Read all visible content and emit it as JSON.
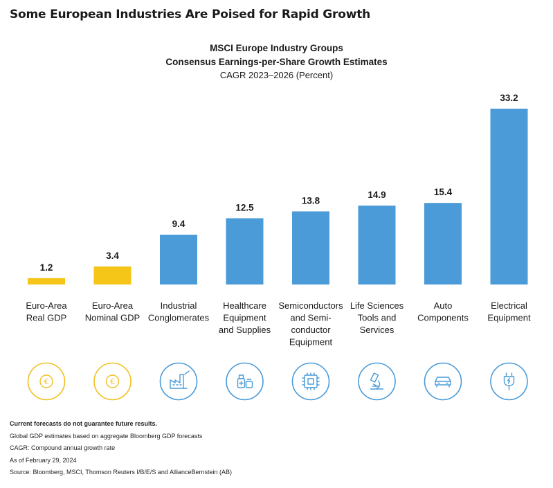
{
  "headline": "Some European Industries Are Poised for Rapid Growth",
  "chart_data": {
    "type": "bar",
    "title": "MSCI Europe Industry Groups",
    "subtitle": "Consensus Earnings-per-Share Growth Estimates",
    "subtitle2": "CAGR 2023–2026 (Percent)",
    "categories": [
      [
        "Euro-Area",
        "Real GDP"
      ],
      [
        "Euro-Area",
        "Nominal GDP"
      ],
      [
        "Industrial",
        "Conglomerates"
      ],
      [
        "Healthcare",
        "Equipment",
        "and Supplies"
      ],
      [
        "Semiconductors",
        "and Semi-",
        "conductor",
        "Equipment"
      ],
      [
        "Life Sciences",
        "Tools and",
        "Services"
      ],
      [
        "Auto",
        "Components"
      ],
      [
        "Electrical",
        "Equipment"
      ]
    ],
    "values": [
      1.2,
      3.4,
      9.4,
      12.5,
      13.8,
      14.9,
      15.4,
      33.2
    ],
    "value_labels": [
      "1.2",
      "3.4",
      "9.4",
      "12.5",
      "13.8",
      "14.9",
      "15.4",
      "33.2"
    ],
    "bar_colors": [
      "#F5C518",
      "#F5C518",
      "#4A9BD8",
      "#4A9BD8",
      "#4A9BD8",
      "#4A9BD8",
      "#4A9BD8",
      "#4A9BD8"
    ],
    "icons": [
      "euro-icon",
      "euro-icon",
      "factory-icon",
      "medical-supplies-icon",
      "chip-icon",
      "microscope-icon",
      "car-icon",
      "plug-icon"
    ],
    "ylim": [
      0,
      33.2
    ]
  },
  "notes": {
    "disclaimer": "Current forecasts do not guarantee future results.",
    "line1": "Global GDP estimates based on aggregate Bloomberg GDP forecasts",
    "line2": "CAGR: Compound annual growth rate",
    "line3": "As of February 29, 2024",
    "line4": "Source: Bloomberg, MSCI, Thomson Reuters I/B/E/S and AllianceBernstein (AB)"
  }
}
